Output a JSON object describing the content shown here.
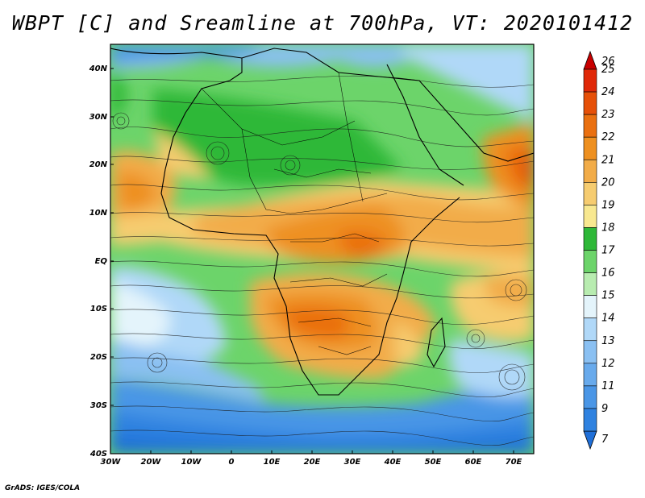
{
  "title": "WBPT [C] and Sreamline at 700hPa, VT: 2020101412",
  "footer": "GrADS: IGES/COLA",
  "axes": {
    "lat_labels": [
      "40N",
      "30N",
      "20N",
      "10N",
      "EQ",
      "10S",
      "20S",
      "30S",
      "40S"
    ],
    "lon_labels": [
      "30W",
      "20W",
      "10W",
      "0",
      "10E",
      "20E",
      "30E",
      "40E",
      "50E",
      "60E",
      "70E"
    ]
  },
  "colorbar": {
    "labels": [
      "7",
      "9",
      "11",
      "12",
      "13",
      "14",
      "15",
      "16",
      "17",
      "18",
      "19",
      "20",
      "21",
      "22",
      "23",
      "24",
      "25",
      "26"
    ],
    "colors": [
      "#1f6fd8",
      "#2f82e0",
      "#4a96e6",
      "#68aaec",
      "#8ac0f2",
      "#b0d8f8",
      "#e4f4fb",
      "#b8ecb0",
      "#6cd46a",
      "#2eb838",
      "#f8e890",
      "#f6cc70",
      "#f2ac48",
      "#ee9020",
      "#ea7010",
      "#e65008",
      "#e02808",
      "#c80000"
    ]
  },
  "chart_data": {
    "type": "heatmap",
    "title": "WBPT [C] and Sreamline at 700hPa, VT: 2020101412",
    "variable": "Wet-bulb potential temperature",
    "units": "C",
    "level": "700hPa",
    "valid_time": "2020101412",
    "lon_range": [
      "30W",
      "75E"
    ],
    "lat_range": [
      "40S",
      "45N"
    ],
    "overlay": "streamlines",
    "colorbar_levels": [
      7,
      9,
      11,
      12,
      13,
      14,
      15,
      16,
      17,
      18,
      19,
      20,
      21,
      22,
      23,
      24,
      25,
      26
    ]
  }
}
